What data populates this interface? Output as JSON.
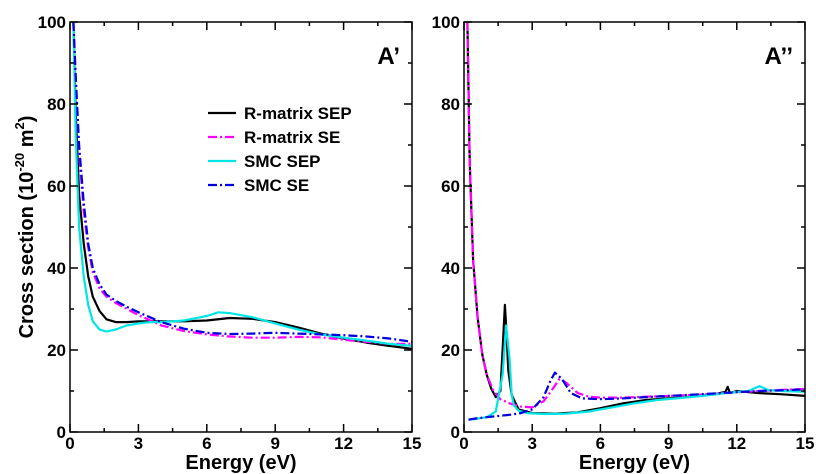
{
  "chart_data": [
    {
      "type": "line",
      "panel_label": "A’",
      "xlabel": "Energy (eV)",
      "ylabel_parts": [
        "Cross section (10",
        "-20",
        " m",
        "2",
        ")"
      ],
      "xlim": [
        0,
        15
      ],
      "ylim": [
        0,
        100
      ],
      "xticks": [
        0,
        3,
        6,
        9,
        12,
        15
      ],
      "yticks": [
        0,
        20,
        40,
        60,
        80,
        100
      ],
      "legend": {
        "placement": "upper-middle"
      },
      "series": [
        {
          "name": "R-matrix SEP",
          "color": "#000000",
          "dash": "solid",
          "x": [
            0.15,
            0.25,
            0.4,
            0.6,
            0.8,
            1.0,
            1.3,
            1.6,
            2.0,
            2.5,
            3.0,
            4.0,
            5.0,
            6.0,
            7.0,
            8.0,
            9.0,
            10.0,
            11.0,
            12.0,
            13.0,
            14.0,
            15.0
          ],
          "y": [
            100,
            78,
            58,
            46,
            38,
            33,
            29.5,
            27.5,
            26.8,
            26.8,
            27.0,
            27.0,
            27.0,
            27.2,
            27.8,
            27.6,
            26.8,
            25.5,
            24.0,
            22.8,
            21.8,
            21.0,
            20.3
          ]
        },
        {
          "name": "R-matrix SE",
          "color": "#ff00ff",
          "dash": "dashdot",
          "x": [
            0.15,
            0.25,
            0.4,
            0.6,
            0.8,
            1.0,
            1.3,
            1.6,
            2.0,
            2.5,
            3.0,
            4.0,
            5.0,
            6.0,
            7.0,
            8.0,
            9.0,
            10.0,
            11.0,
            12.0,
            13.0,
            14.0,
            15.0
          ],
          "y": [
            100,
            86,
            68,
            54,
            45,
            39,
            35,
            33,
            31.5,
            30.0,
            28.5,
            26.0,
            24.6,
            23.8,
            23.3,
            23.0,
            23.0,
            23.2,
            23.1,
            22.5,
            22.0,
            21.5,
            21.5
          ]
        },
        {
          "name": "SMC SEP",
          "color": "#00e5e5",
          "dash": "solid",
          "x": [
            0.15,
            0.25,
            0.4,
            0.6,
            0.8,
            1.0,
            1.3,
            1.6,
            2.0,
            2.5,
            3.0,
            3.5,
            4.0,
            5.0,
            6.0,
            6.5,
            7.0,
            8.0,
            9.0,
            10.0,
            11.0,
            12.0,
            13.0,
            14.0,
            15.0
          ],
          "y": [
            100,
            72,
            50,
            38,
            31,
            27,
            25,
            24.5,
            25.0,
            26.0,
            26.5,
            26.8,
            26.8,
            27.2,
            28.3,
            29.2,
            29.0,
            28.0,
            26.5,
            25.0,
            23.8,
            23.0,
            22.3,
            21.5,
            21.0
          ]
        },
        {
          "name": "SMC SE",
          "color": "#0000dd",
          "dash": "dashdot",
          "x": [
            0.15,
            0.25,
            0.4,
            0.6,
            0.8,
            1.0,
            1.3,
            1.6,
            2.0,
            2.5,
            3.0,
            4.0,
            5.0,
            6.0,
            7.0,
            8.0,
            9.0,
            10.0,
            11.0,
            12.0,
            13.0,
            14.0,
            15.0
          ],
          "y": [
            100,
            87,
            70,
            56,
            46,
            40,
            36,
            33.5,
            32.0,
            30.5,
            29.2,
            26.8,
            25.2,
            24.2,
            23.9,
            24.0,
            24.2,
            24.0,
            23.8,
            23.6,
            23.3,
            22.8,
            22.0
          ]
        }
      ]
    },
    {
      "type": "line",
      "panel_label": "A’’",
      "xlabel": "Energy (eV)",
      "xlim": [
        0,
        15
      ],
      "ylim": [
        0,
        100
      ],
      "xticks": [
        0,
        3,
        6,
        9,
        12,
        15
      ],
      "yticks": [
        0,
        20,
        40,
        60,
        80,
        100
      ],
      "series": [
        {
          "name": "R-matrix SEP",
          "color": "#000000",
          "dash": "solid",
          "x": [
            0.15,
            0.25,
            0.4,
            0.6,
            0.8,
            1.0,
            1.2,
            1.4,
            1.6,
            1.7,
            1.8,
            1.85,
            1.95,
            2.1,
            2.4,
            3.0,
            4.0,
            5.0,
            6.0,
            7.0,
            8.0,
            9.0,
            10.0,
            11.0,
            11.5,
            11.6,
            11.7,
            12.0,
            13.0,
            14.0,
            15.0
          ],
          "y": [
            100,
            66,
            42,
            28,
            19,
            14,
            10.5,
            8.5,
            10,
            20,
            31,
            26,
            15,
            9,
            5.5,
            4.6,
            4.5,
            4.8,
            5.8,
            7,
            7.8,
            8.2,
            8.6,
            9.2,
            9.8,
            11,
            9.5,
            10,
            9.5,
            9.2,
            8.8
          ]
        },
        {
          "name": "R-matrix SE",
          "color": "#ff00ff",
          "dash": "dashdot",
          "x": [
            0.15,
            0.25,
            0.4,
            0.6,
            0.8,
            1.0,
            1.3,
            1.6,
            2.0,
            2.5,
            3.0,
            3.5,
            3.9,
            4.2,
            4.5,
            5.0,
            5.5,
            6.0,
            7.0,
            8.0,
            9.0,
            10.0,
            11.0,
            12.0,
            13.0,
            14.0,
            15.0
          ],
          "y": [
            100,
            66,
            42,
            28,
            19,
            14,
            10,
            8,
            7,
            6.2,
            6.0,
            7.5,
            10.5,
            13,
            12,
            9.5,
            8.6,
            8.4,
            8.4,
            8.6,
            8.8,
            9.0,
            9.3,
            9.7,
            10.0,
            10.3,
            10.5
          ]
        },
        {
          "name": "SMC SEP",
          "color": "#00e5e5",
          "dash": "solid",
          "x": [
            0.2,
            0.5,
            1.0,
            1.4,
            1.7,
            1.85,
            2.0,
            2.1,
            2.2,
            2.4,
            2.8,
            3.5,
            4.5,
            5.5,
            6.5,
            7.5,
            8.5,
            9.5,
            10.5,
            11.5,
            12.5,
            13.0,
            13.4,
            14.0,
            15.0
          ],
          "y": [
            3.0,
            3.2,
            3.6,
            5,
            14,
            26,
            18,
            9,
            6.5,
            5.2,
            4.6,
            4.4,
            4.5,
            5.0,
            6.0,
            7.0,
            7.8,
            8.3,
            8.8,
            9.5,
            10.0,
            11.2,
            10.2,
            10.0,
            9.8
          ]
        },
        {
          "name": "SMC SE",
          "color": "#0000dd",
          "dash": "dashdot",
          "x": [
            0.2,
            0.5,
            1.0,
            1.5,
            2.0,
            2.5,
            3.0,
            3.5,
            3.8,
            4.0,
            4.3,
            4.7,
            5.2,
            6.0,
            7.0,
            8.0,
            9.0,
            10.0,
            11.0,
            12.0,
            13.0,
            14.0,
            15.0
          ],
          "y": [
            3.0,
            3.3,
            3.6,
            3.9,
            4.2,
            4.6,
            5.5,
            8.5,
            12.5,
            14.5,
            13,
            9.5,
            8.2,
            8.0,
            8.2,
            8.5,
            8.8,
            9.1,
            9.4,
            9.7,
            10.0,
            10.2,
            10.4
          ]
        }
      ]
    }
  ]
}
